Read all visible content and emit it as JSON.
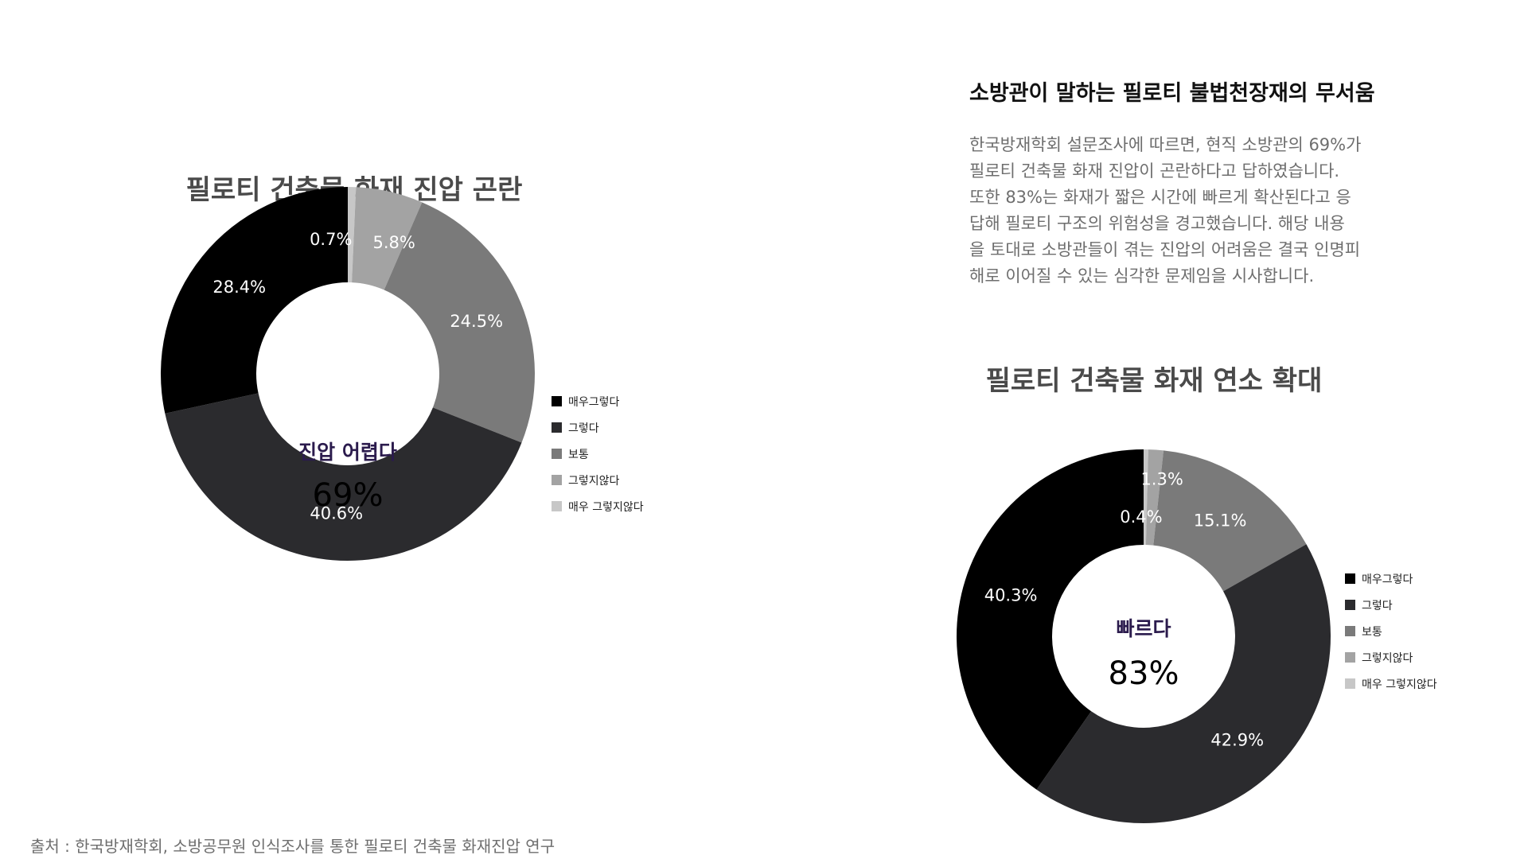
{
  "article": {
    "title": "소방관이 말하는 필로티 불법천장재의 무서움",
    "body_lines": [
      "한국방재학회 설문조사에 따르면, 현직 소방관의 69%가",
      "필로티 건축물 화재 진압이 곤란하다고 답하였습니다.",
      "또한 83%는 화재가 짧은 시간에 빠르게 확산된다고 응",
      "답해 필로티 구조의 위험성을 경고했습니다. 해당 내용",
      "을 토대로 소방관들이 겪는 진압의 어려움은 결국 인명피",
      "해로 이어질 수 있는 심각한 문제임을 시사합니다."
    ]
  },
  "source": "출처 : 한국방재학회, 소방공무원 인식조사를 통한 필로티 건축물 화재진압 연구",
  "chart_data": [
    {
      "type": "pie",
      "variant": "donut",
      "title": "필로티 건축물 화재 진압 곤란",
      "center_label": "진압 어렵다",
      "center_value": "69%",
      "categories": [
        "매우그렇다",
        "그렇다",
        "보통",
        "그렇지않다",
        "매우 그렇지않다"
      ],
      "values": [
        28.4,
        40.6,
        24.5,
        5.8,
        0.7
      ],
      "labels": [
        "28.4%",
        "40.6%",
        "24.5%",
        "5.8%",
        "0.7%"
      ],
      "colors": [
        "#000000",
        "#2b2b2e",
        "#7a7a7a",
        "#a3a3a3",
        "#c7c7c7"
      ],
      "legend_position": "right"
    },
    {
      "type": "pie",
      "variant": "donut",
      "title": "필로티 건축물 화재 연소 확대",
      "center_label": "빠르다",
      "center_value": "83%",
      "categories": [
        "매우그렇다",
        "그렇다",
        "보통",
        "그렇지않다",
        "매우 그렇지않다"
      ],
      "values": [
        40.3,
        42.9,
        15.1,
        1.3,
        0.4
      ],
      "labels": [
        "40.3%",
        "42.9%",
        "15.1%",
        "1.3%",
        "0.4%"
      ],
      "colors": [
        "#000000",
        "#2b2b2e",
        "#7a7a7a",
        "#a3a3a3",
        "#c7c7c7"
      ],
      "legend_position": "right"
    }
  ]
}
